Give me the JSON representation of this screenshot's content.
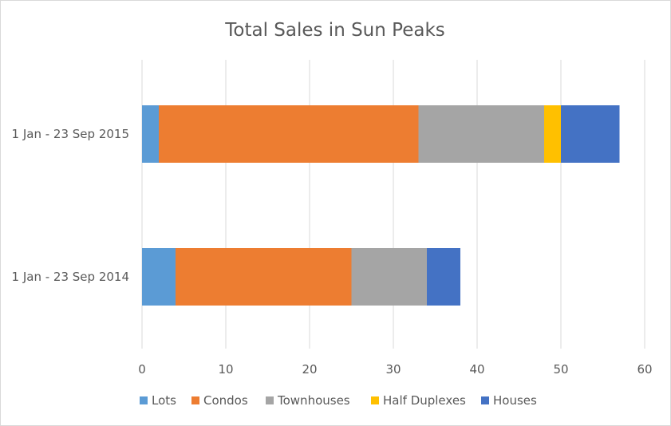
{
  "chart_data": {
    "type": "bar",
    "orientation": "horizontal",
    "stacked": true,
    "title": "Total Sales in Sun Peaks",
    "categories": [
      "1 Jan - 23 Sep 2015",
      "1 Jan - 23 Sep 2014"
    ],
    "series": [
      {
        "name": "Lots",
        "color": "#5b9bd5",
        "values": [
          2,
          4
        ]
      },
      {
        "name": "Condos",
        "color": "#ed7d31",
        "values": [
          31,
          21
        ]
      },
      {
        "name": "Townhouses",
        "color": "#a5a5a5",
        "values": [
          15,
          9
        ]
      },
      {
        "name": "Half Duplexes",
        "color": "#ffc000",
        "values": [
          2,
          0
        ]
      },
      {
        "name": "Houses",
        "color": "#4472c4",
        "values": [
          7,
          4
        ]
      }
    ],
    "xlim": [
      0,
      60
    ],
    "xticks": [
      0,
      10,
      20,
      30,
      40,
      50,
      60
    ],
    "grid": "vertical",
    "legend": "bottom"
  }
}
